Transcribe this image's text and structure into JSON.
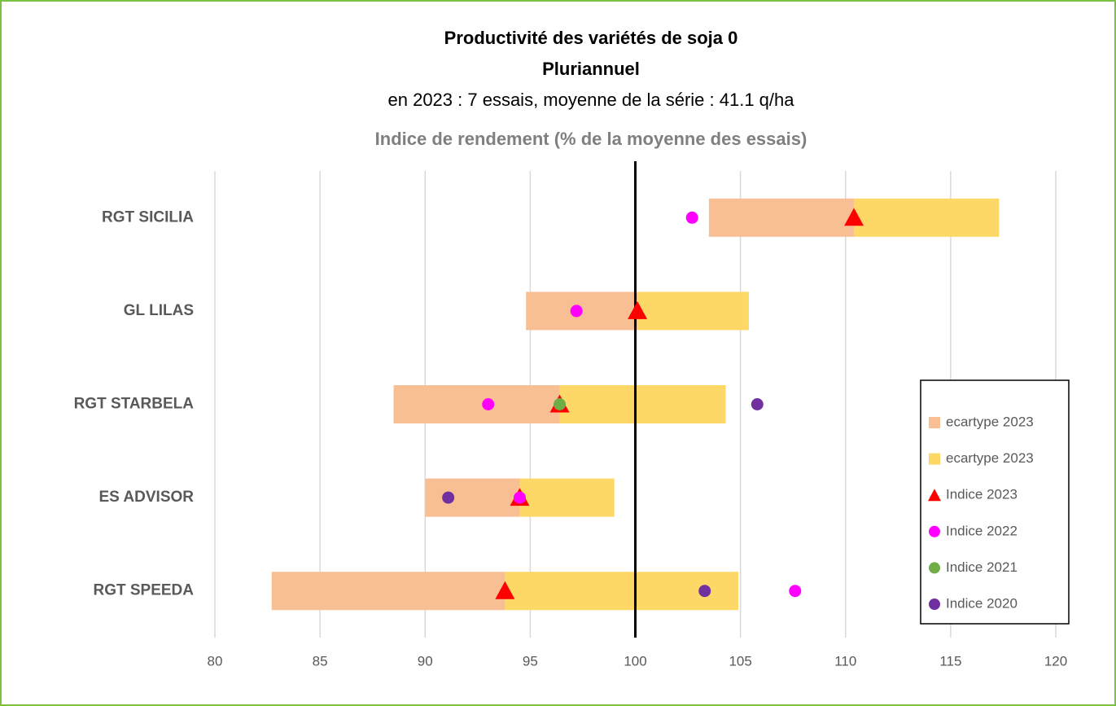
{
  "chart_data": {
    "type": "range_bar",
    "title": "Productivité des variétés de soja 0",
    "subtitle": "Pluriannuel",
    "note": "en 2023 : 7 essais, moyenne de la série : 41.1 q/ha",
    "x_label": "Indice de rendement (% de la moyenne des essais)",
    "categories": [
      "RGT SICILIA",
      "GL LILAS",
      "RGT STARBELA",
      "ES ADVISOR",
      "RGT SPEEDA"
    ],
    "series": [
      {
        "name": "ecartype 2023",
        "color": "#f8bf94",
        "marker": "bar_below",
        "values": [
          6.9,
          5.3,
          7.9,
          4.5,
          11.1
        ]
      },
      {
        "name": "ecartype 2023",
        "color": "#fdd866",
        "marker": "bar_above",
        "values": [
          6.9,
          5.3,
          7.9,
          4.5,
          11.1
        ]
      },
      {
        "name": "Indice 2023",
        "color": "#ff0000",
        "marker": "triangle",
        "values": [
          110.4,
          100.1,
          96.4,
          94.5,
          93.8
        ]
      },
      {
        "name": "Indice 2022",
        "color": "#ff00ff",
        "marker": "circle",
        "values": [
          102.7,
          97.2,
          93.0,
          94.5,
          107.6
        ]
      },
      {
        "name": "Indice 2021",
        "color": "#70ad47",
        "marker": "circle",
        "values": [
          null,
          null,
          96.4,
          null,
          null
        ]
      },
      {
        "name": "Indice 2020",
        "color": "#7030a0",
        "marker": "circle",
        "values": [
          null,
          null,
          105.8,
          91.1,
          103.3
        ]
      }
    ],
    "xlim": [
      80,
      120
    ],
    "xticks": [
      80,
      85,
      90,
      95,
      100,
      105,
      110,
      115,
      120
    ],
    "vline": 100,
    "grid": true,
    "legend": "lower right"
  }
}
